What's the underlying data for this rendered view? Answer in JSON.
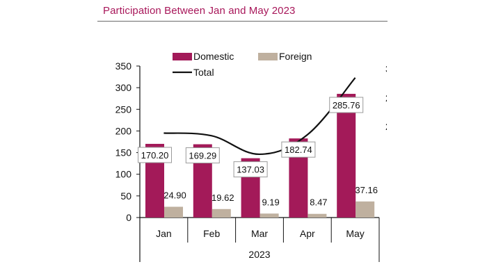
{
  "chart_data": {
    "type": "bar",
    "title": "Participation Between Jan and May 2023",
    "xlabel": "2023",
    "ylabel": "",
    "categories": [
      "Jan",
      "Feb",
      "Mar",
      "Apr",
      "May"
    ],
    "series": [
      {
        "name": "Domestic",
        "kind": "bar",
        "color": "#a31a59",
        "values": [
          170.2,
          169.29,
          137.03,
          182.74,
          285.76
        ],
        "labels": [
          "170.20",
          "169.29",
          "137.03",
          "182.74",
          "285.76"
        ]
      },
      {
        "name": "Foreign",
        "kind": "bar",
        "color": "#bfb09f",
        "values": [
          24.9,
          19.62,
          9.19,
          8.47,
          37.16
        ],
        "labels": [
          "24.90",
          "19.62",
          "9.19",
          "8.47",
          "37.16"
        ]
      },
      {
        "name": "Total",
        "kind": "line",
        "color": "#111111",
        "values": [
          195.1,
          188.91,
          146.22,
          191.21,
          322.92
        ]
      }
    ],
    "yticks": [
      0,
      50,
      100,
      150,
      200,
      250,
      300,
      350
    ],
    "ylim": [
      0,
      350
    ],
    "grid": false,
    "legend_position": "top"
  }
}
